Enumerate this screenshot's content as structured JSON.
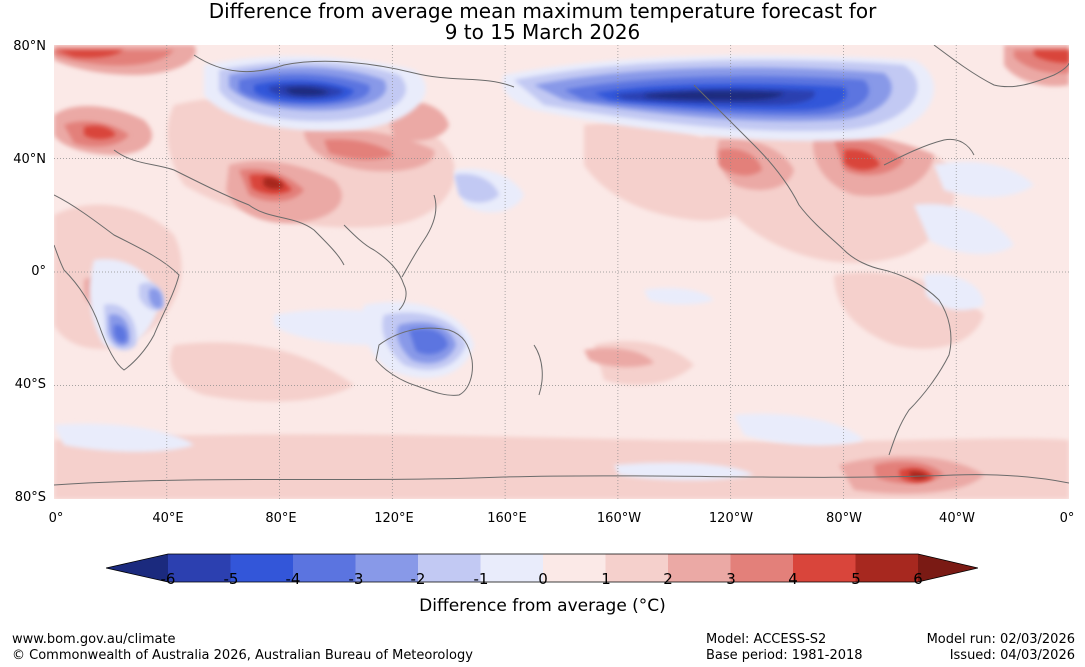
{
  "title": {
    "line1": "Difference from average mean maximum temperature forecast for",
    "line2": "9 to 15 March 2026"
  },
  "map": {
    "lat_labels": [
      "80°N",
      "40°N",
      "0°",
      "40°S",
      "80°S"
    ],
    "lon_labels": [
      "0°",
      "40°E",
      "80°E",
      "120°E",
      "160°E",
      "160°W",
      "120°W",
      "80°W",
      "40°W",
      "0°"
    ]
  },
  "legend": {
    "title": "Difference from average (°C)",
    "tick_labels": [
      "-6",
      "-5",
      "-4",
      "-3",
      "-2",
      "-1",
      "0",
      "1",
      "2",
      "3",
      "4",
      "5",
      "6"
    ],
    "colors": [
      "#1b2a7e",
      "#2c40b0",
      "#3356d9",
      "#5b74e0",
      "#8899e8",
      "#c2c9f3",
      "#e9ecfb",
      "#fbe9e7",
      "#f5d0cc",
      "#eba9a5",
      "#e3807a",
      "#d9453b",
      "#a7281f",
      "#7a1a14"
    ]
  },
  "footer": {
    "website": "www.bom.gov.au/climate",
    "copyright": "© Commonwealth of Australia 2026, Australian Bureau of Meteorology",
    "model": "Model: ACCESS-S2",
    "base_period": "Base period: 1981-2018",
    "model_run": "Model run: 02/03/2026",
    "issued": "Issued: 04/03/2026"
  }
}
